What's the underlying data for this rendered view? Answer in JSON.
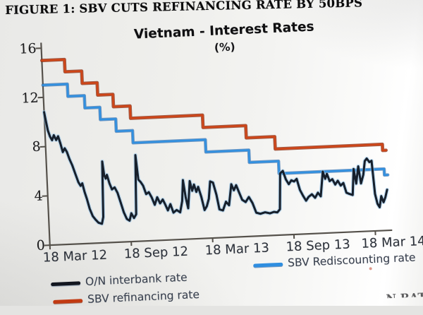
{
  "figure": {
    "header": "FIGURE 1: SBV CUTS REFINANCING RATE BY 50BPS",
    "cutoff_fragment": "N RAT"
  },
  "chart_data": {
    "type": "line",
    "title": "Vietnam - Interest Rates",
    "subtitle": "(%)",
    "x_unit": "months since 18 Mar 2012",
    "xlim": [
      0,
      25.3
    ],
    "ylim": [
      0,
      16
    ],
    "y_ticks": [
      0,
      4,
      8,
      12,
      16
    ],
    "x_ticks": [
      {
        "m": 0,
        "label": "18 Mar 12"
      },
      {
        "m": 6,
        "label": "18 Sep 12"
      },
      {
        "m": 12,
        "label": "18 Mar 13"
      },
      {
        "m": 18,
        "label": "18 Sep 13"
      },
      {
        "m": 24,
        "label": "18 Mar 14"
      }
    ],
    "legend_position": "bottom",
    "grid": false,
    "series": [
      {
        "name": "O/N interbank rate",
        "color": "#161f2b",
        "style": "jagged",
        "points": [
          [
            0,
            10.8
          ],
          [
            0.1,
            10.1
          ],
          [
            0.22,
            9.3
          ],
          [
            0.36,
            8.8
          ],
          [
            0.5,
            8.5
          ],
          [
            0.64,
            8.9
          ],
          [
            0.8,
            8.5
          ],
          [
            0.95,
            8.8
          ],
          [
            1.1,
            8.2
          ],
          [
            1.25,
            7.5
          ],
          [
            1.4,
            7.8
          ],
          [
            1.55,
            7.5
          ],
          [
            1.72,
            6.9
          ],
          [
            1.9,
            6.4
          ],
          [
            2.1,
            5.7
          ],
          [
            2.3,
            5.0
          ],
          [
            2.45,
            4.7
          ],
          [
            2.58,
            4.9
          ],
          [
            2.72,
            4.2
          ],
          [
            2.88,
            3.6
          ],
          [
            3.05,
            2.8
          ],
          [
            3.25,
            2.2
          ],
          [
            3.45,
            1.9
          ],
          [
            3.65,
            1.65
          ],
          [
            3.9,
            1.55
          ],
          [
            4.02,
            2.1
          ],
          [
            4.12,
            6.6
          ],
          [
            4.22,
            5.5
          ],
          [
            4.32,
            5.2
          ],
          [
            4.42,
            5.5
          ],
          [
            4.58,
            4.8
          ],
          [
            4.75,
            4.3
          ],
          [
            4.95,
            4.45
          ],
          [
            5.15,
            4.0
          ],
          [
            5.35,
            3.2
          ],
          [
            5.55,
            2.4
          ],
          [
            5.75,
            1.85
          ],
          [
            5.95,
            1.7
          ],
          [
            6.1,
            2.3
          ],
          [
            6.28,
            1.9
          ],
          [
            6.45,
            2.2
          ],
          [
            6.58,
            7.0
          ],
          [
            6.72,
            5.0
          ],
          [
            6.88,
            4.8
          ],
          [
            7.05,
            4.5
          ],
          [
            7.25,
            3.8
          ],
          [
            7.45,
            3.95
          ],
          [
            7.65,
            3.5
          ],
          [
            7.85,
            2.9
          ],
          [
            8.05,
            3.5
          ],
          [
            8.25,
            3.0
          ],
          [
            8.45,
            3.3
          ],
          [
            8.62,
            2.9
          ],
          [
            8.8,
            2.4
          ],
          [
            9.0,
            2.9
          ],
          [
            9.2,
            2.2
          ],
          [
            9.45,
            2.4
          ],
          [
            9.7,
            2.2
          ],
          [
            9.88,
            3.1
          ],
          [
            10.0,
            4.8
          ],
          [
            10.15,
            3.4
          ],
          [
            10.3,
            2.5
          ],
          [
            10.5,
            4.7
          ],
          [
            10.65,
            3.9
          ],
          [
            10.8,
            4.4
          ],
          [
            10.95,
            3.8
          ],
          [
            11.1,
            4.2
          ],
          [
            11.3,
            3.4
          ],
          [
            11.5,
            2.3
          ],
          [
            11.68,
            2.6
          ],
          [
            11.85,
            3.2
          ],
          [
            12.0,
            4.6
          ],
          [
            12.2,
            4.5
          ],
          [
            12.42,
            3.5
          ],
          [
            12.6,
            2.3
          ],
          [
            12.85,
            2.2
          ],
          [
            13.1,
            2.9
          ],
          [
            13.32,
            2.6
          ],
          [
            13.55,
            4.3
          ],
          [
            13.72,
            3.8
          ],
          [
            13.9,
            4.2
          ],
          [
            14.1,
            3.6
          ],
          [
            14.3,
            3.0
          ],
          [
            14.55,
            2.8
          ],
          [
            14.8,
            3.2
          ],
          [
            15.05,
            2.7
          ],
          [
            15.3,
            1.9
          ],
          [
            15.6,
            1.8
          ],
          [
            15.95,
            1.9
          ],
          [
            16.3,
            1.8
          ],
          [
            16.6,
            1.9
          ],
          [
            16.85,
            1.85
          ],
          [
            17.05,
            2.1
          ],
          [
            17.18,
            5.0
          ],
          [
            17.38,
            5.2
          ],
          [
            17.58,
            4.5
          ],
          [
            17.78,
            4.1
          ],
          [
            17.98,
            4.4
          ],
          [
            18.18,
            4.3
          ],
          [
            18.38,
            4.5
          ],
          [
            18.58,
            3.6
          ],
          [
            18.8,
            3.1
          ],
          [
            19.0,
            2.7
          ],
          [
            19.2,
            3.0
          ],
          [
            19.45,
            3.2
          ],
          [
            19.68,
            2.9
          ],
          [
            19.9,
            3.3
          ],
          [
            20.1,
            3.0
          ],
          [
            20.32,
            5.0
          ],
          [
            20.48,
            4.4
          ],
          [
            20.62,
            4.8
          ],
          [
            20.8,
            4.2
          ],
          [
            21.0,
            4.35
          ],
          [
            21.2,
            3.9
          ],
          [
            21.4,
            4.2
          ],
          [
            21.6,
            3.8
          ],
          [
            21.8,
            4.0
          ],
          [
            22.0,
            3.2
          ],
          [
            22.2,
            3.1
          ],
          [
            22.45,
            3.0
          ],
          [
            22.6,
            5.1
          ],
          [
            22.75,
            3.9
          ],
          [
            22.95,
            5.3
          ],
          [
            23.1,
            3.9
          ],
          [
            23.3,
            4.6
          ],
          [
            23.45,
            5.7
          ],
          [
            23.6,
            5.9
          ],
          [
            23.78,
            5.6
          ],
          [
            23.95,
            5.7
          ],
          [
            24.1,
            3.0
          ],
          [
            24.25,
            2.2
          ],
          [
            24.4,
            1.9
          ],
          [
            24.55,
            2.8
          ],
          [
            24.7,
            2.3
          ],
          [
            24.85,
            2.7
          ],
          [
            25.0,
            3.3
          ]
        ]
      },
      {
        "name": "SBV refinancing rate",
        "color": "#cf4517",
        "style": "step",
        "points": [
          [
            0,
            15
          ],
          [
            1.67,
            14
          ],
          [
            2.9,
            13
          ],
          [
            4.0,
            12
          ],
          [
            5.12,
            11
          ],
          [
            6.35,
            10
          ],
          [
            11.65,
            9
          ],
          [
            14.8,
            8
          ],
          [
            16.9,
            7
          ],
          [
            24.8,
            6.5
          ]
        ],
        "end_m": 25.05
      },
      {
        "name": "SBV Rediscounting rate",
        "color": "#3190e0",
        "style": "step",
        "points": [
          [
            0,
            13
          ],
          [
            1.8,
            12
          ],
          [
            3.02,
            11
          ],
          [
            4.12,
            10
          ],
          [
            5.25,
            9
          ],
          [
            6.45,
            8
          ],
          [
            11.78,
            7
          ],
          [
            14.95,
            6
          ],
          [
            17.1,
            5
          ],
          [
            24.85,
            4.5
          ]
        ],
        "end_m": 25.1
      }
    ],
    "axis_color": "#55514b"
  }
}
